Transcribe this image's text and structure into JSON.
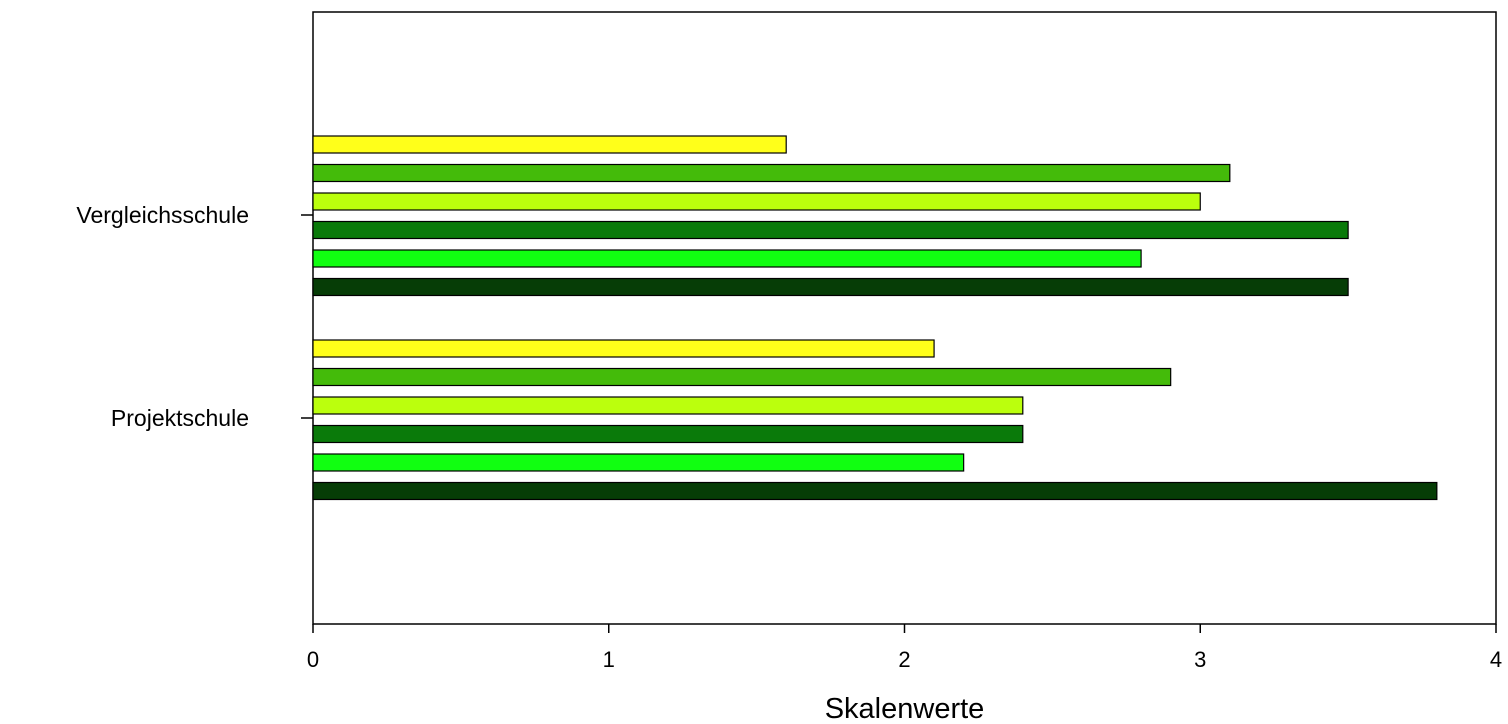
{
  "chart_data": {
    "type": "bar",
    "orientation": "horizontal",
    "title": "",
    "xlabel": "Skalenwerte",
    "ylabel": "",
    "xlim": [
      0,
      4
    ],
    "x_ticks": [
      0,
      1,
      2,
      3,
      4
    ],
    "categories": [
      "Vergleichsschule",
      "Projektschule"
    ],
    "grid": false,
    "legend": "none",
    "series": [
      {
        "color": "#ffff1a",
        "values": [
          1.6,
          2.1
        ]
      },
      {
        "color": "#44bb0a",
        "values": [
          3.1,
          2.9
        ]
      },
      {
        "color": "#bbff0d",
        "values": [
          3.0,
          2.4
        ]
      },
      {
        "color": "#0a7a0a",
        "values": [
          3.5,
          2.4
        ]
      },
      {
        "color": "#11ff11",
        "values": [
          2.8,
          2.2
        ]
      },
      {
        "color": "#063d06",
        "values": [
          3.5,
          3.8
        ]
      }
    ]
  }
}
